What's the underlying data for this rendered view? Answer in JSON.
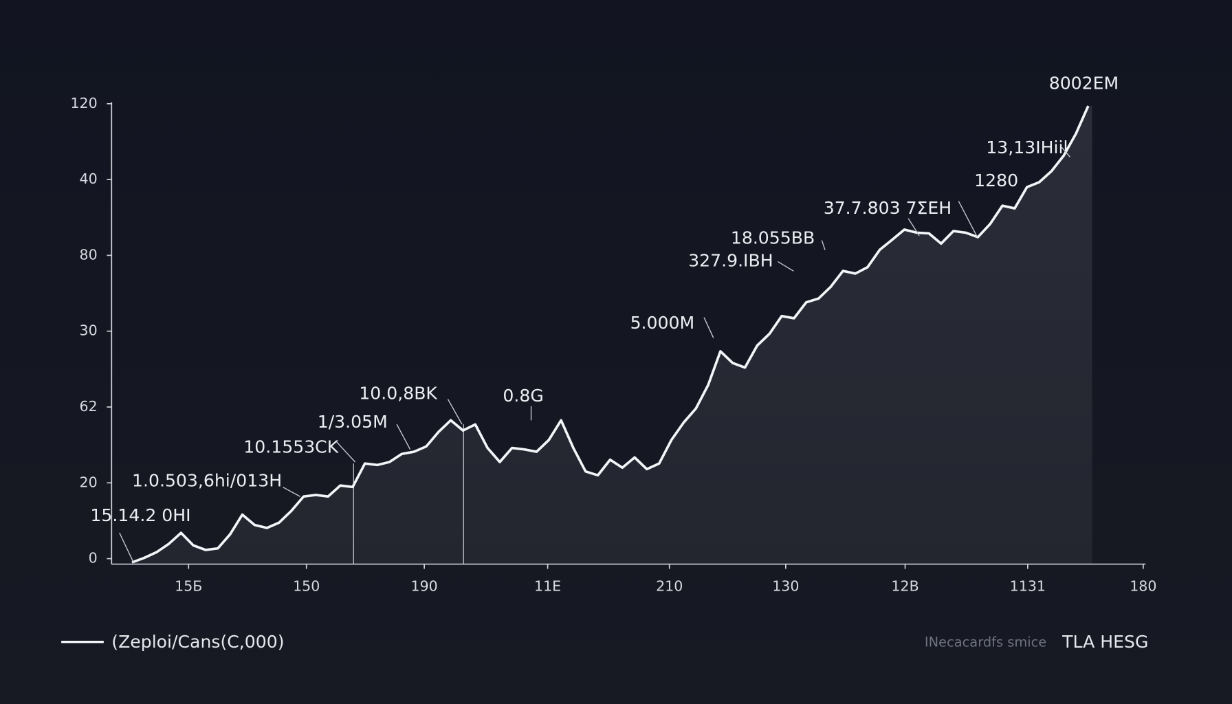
{
  "chart_data": {
    "type": "line",
    "ylim": [
      0,
      120
    ],
    "y_axis_labels": [
      "0",
      "20",
      "62",
      "30",
      "80",
      "40",
      "120"
    ],
    "x_axis_labels": [
      "15Б",
      "150",
      "190",
      "11E",
      "210",
      "130",
      "12B",
      "1131",
      "180"
    ],
    "series": [
      {
        "name": "(Zeploi/Cans(C,000)",
        "color": "#f4f5f8",
        "values": [
          -1.0,
          0.2,
          1.7,
          3.9,
          6.8,
          3.5,
          2.3,
          2.7,
          6.4,
          11.6,
          8.9,
          8.1,
          9.5,
          12.6,
          16.4,
          16.8,
          16.4,
          19.3,
          18.9,
          25.1,
          24.7,
          25.5,
          27.6,
          28.2,
          29.6,
          33.4,
          36.5,
          33.8,
          35.4,
          29.2,
          25.5,
          29.2,
          28.8,
          28.2,
          31.3,
          36.5,
          29.2,
          23.0,
          22.0,
          26.1,
          24.0,
          26.7,
          23.6,
          25.1,
          31.3,
          35.9,
          39.6,
          45.8,
          54.7,
          51.6,
          50.4,
          56.2,
          59.3,
          64.0,
          63.4,
          67.6,
          68.6,
          71.7,
          75.9,
          75.2,
          76.9,
          81.5,
          84.1,
          86.8,
          86.0,
          85.8,
          83.1,
          86.4,
          86.0,
          84.8,
          88.3,
          93.1,
          92.4,
          98.0,
          99.3,
          102.2,
          106.3,
          112.1,
          119.4
        ]
      }
    ],
    "annotations": [
      "15.14.2 0HI",
      "1.0.503,6hi/013H",
      "10.1553CK",
      "1/3.05M",
      "10.0,8BK",
      "0.8G",
      "5.000M",
      "327.9.IBH",
      "18.055BB",
      "37.7.803 7ΣEH",
      "1280",
      "13,13IHiil",
      "8002EM"
    ],
    "source_note": "INecacardfs smice",
    "brand": "TLA HESG"
  }
}
